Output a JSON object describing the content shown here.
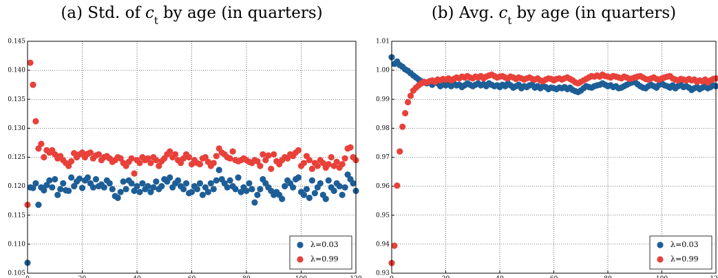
{
  "chart_data": [
    {
      "type": "scatter",
      "title": [
        "(a) Std. of",
        "c",
        "t",
        "by age (in quarters)"
      ],
      "x": [
        0,
        1,
        2,
        3,
        4,
        5,
        6,
        7,
        8,
        9,
        10,
        11,
        12,
        13,
        14,
        15,
        16,
        17,
        18,
        19,
        20,
        21,
        22,
        23,
        24,
        25,
        26,
        27,
        28,
        29,
        30,
        31,
        32,
        33,
        34,
        35,
        36,
        37,
        38,
        39,
        40,
        41,
        42,
        43,
        44,
        45,
        46,
        47,
        48,
        49,
        50,
        51,
        52,
        53,
        54,
        55,
        56,
        57,
        58,
        59,
        60,
        61,
        62,
        63,
        64,
        65,
        66,
        67,
        68,
        69,
        70,
        71,
        72,
        73,
        74,
        75,
        76,
        77,
        78,
        79,
        80,
        81,
        82,
        83,
        84,
        85,
        86,
        87,
        88,
        89,
        90,
        91,
        92,
        93,
        94,
        95,
        96,
        97,
        98,
        99,
        100,
        101,
        102,
        103,
        104,
        105,
        106,
        107,
        108,
        109,
        110,
        111,
        112,
        113,
        114,
        115,
        116,
        117,
        118,
        119,
        120
      ],
      "series": [
        {
          "name": "λ=0.03",
          "color": "#1d5e97",
          "values": [
            0.1068,
            0.1198,
            0.1197,
            0.1205,
            0.1168,
            0.1198,
            0.1193,
            0.1202,
            0.121,
            0.1198,
            0.1212,
            0.1185,
            0.1195,
            0.1205,
            0.1193,
            0.1192,
            0.1215,
            0.12,
            0.1208,
            0.1213,
            0.1197,
            0.121,
            0.1215,
            0.1205,
            0.1198,
            0.1212,
            0.12,
            0.1203,
            0.1198,
            0.121,
            0.1205,
            0.1195,
            0.1183,
            0.118,
            0.119,
            0.1208,
            0.1195,
            0.121,
            0.1205,
            0.1192,
            0.12,
            0.119,
            0.1205,
            0.1195,
            0.12,
            0.119,
            0.1198,
            0.1208,
            0.1195,
            0.12,
            0.1212,
            0.1208,
            0.1215,
            0.1198,
            0.1205,
            0.121,
            0.12,
            0.1195,
            0.1205,
            0.1188,
            0.119,
            0.12,
            0.1195,
            0.1205,
            0.1185,
            0.1198,
            0.119,
            0.1205,
            0.1195,
            0.121,
            0.1228,
            0.1212,
            0.1205,
            0.1198,
            0.121,
            0.12,
            0.1195,
            0.1215,
            0.119,
            0.1198,
            0.1192,
            0.1205,
            0.1195,
            0.1172,
            0.1185,
            0.1195,
            0.1212,
            0.1205,
            0.1198,
            0.1192,
            0.1185,
            0.119,
            0.1185,
            0.1178,
            0.12,
            0.121,
            0.1205,
            0.1198,
            0.1212,
            0.1215,
            0.119,
            0.1185,
            0.1195,
            0.118,
            0.121,
            0.1188,
            0.1198,
            0.1205,
            0.1185,
            0.1178,
            0.121,
            0.1198,
            0.1192,
            0.1205,
            0.12,
            0.1185,
            0.1198,
            0.122,
            0.1212,
            0.1205,
            0.1192
          ]
        },
        {
          "name": "λ=0.99",
          "color": "#e8413a",
          "values": [
            0.1168,
            0.1413,
            0.1375,
            0.1312,
            0.1265,
            0.1273,
            0.125,
            0.1262,
            0.1258,
            0.1262,
            0.1255,
            0.1248,
            0.1252,
            0.1245,
            0.124,
            0.1235,
            0.1243,
            0.1257,
            0.125,
            0.1255,
            0.1258,
            0.125,
            0.1256,
            0.1258,
            0.1248,
            0.1253,
            0.1255,
            0.1245,
            0.125,
            0.1252,
            0.1248,
            0.1242,
            0.1245,
            0.125,
            0.1248,
            0.124,
            0.1235,
            0.1242,
            0.1248,
            0.1222,
            0.1245,
            0.124,
            0.125,
            0.1245,
            0.1248,
            0.124,
            0.125,
            0.1245,
            0.1235,
            0.1243,
            0.1248,
            0.1255,
            0.126,
            0.125,
            0.1255,
            0.1245,
            0.124,
            0.1248,
            0.1255,
            0.125,
            0.1238,
            0.1245,
            0.124,
            0.1238,
            0.1248,
            0.125,
            0.1242,
            0.1235,
            0.124,
            0.1252,
            0.1265,
            0.1258,
            0.1255,
            0.125,
            0.1248,
            0.126,
            0.1245,
            0.1243,
            0.1245,
            0.1248,
            0.1245,
            0.1242,
            0.124,
            0.1245,
            0.1243,
            0.1235,
            0.1255,
            0.1245,
            0.1253,
            0.123,
            0.1255,
            0.1243,
            0.1238,
            0.1245,
            0.125,
            0.1248,
            0.1255,
            0.1252,
            0.1258,
            0.1262,
            0.1235,
            0.124,
            0.1252,
            0.1245,
            0.123,
            0.124,
            0.1235,
            0.1245,
            0.124,
            0.1232,
            0.1238,
            0.125,
            0.1235,
            0.1242,
            0.1232,
            0.1238,
            0.1248,
            0.1265,
            0.1267,
            0.125,
            0.1245
          ]
        }
      ],
      "xlim": [
        0,
        120
      ],
      "xticks": [
        0,
        20,
        40,
        60,
        80,
        100,
        120
      ],
      "ylim": [
        0.105,
        0.145
      ],
      "yticks": [
        0.105,
        {
          "value": 0.11,
          "label": "0.110"
        },
        0.115,
        {
          "value": 0.12,
          "label": "0.120"
        },
        0.125,
        {
          "value": 0.13,
          "label": "0.130"
        },
        0.135,
        {
          "value": 0.14,
          "label": "0.140"
        },
        0.145
      ],
      "grid": true,
      "legend": "lower right"
    },
    {
      "type": "scatter",
      "title": [
        "(b) Avg.",
        "c",
        "t",
        "by age (in quarters)"
      ],
      "x": [
        0,
        1,
        2,
        3,
        4,
        5,
        6,
        7,
        8,
        9,
        10,
        11,
        12,
        13,
        14,
        15,
        16,
        17,
        18,
        19,
        20,
        21,
        22,
        23,
        24,
        25,
        26,
        27,
        28,
        29,
        30,
        31,
        32,
        33,
        34,
        35,
        36,
        37,
        38,
        39,
        40,
        41,
        42,
        43,
        44,
        45,
        46,
        47,
        48,
        49,
        50,
        51,
        52,
        53,
        54,
        55,
        56,
        57,
        58,
        59,
        60,
        61,
        62,
        63,
        64,
        65,
        66,
        67,
        68,
        69,
        70,
        71,
        72,
        73,
        74,
        75,
        76,
        77,
        78,
        79,
        80,
        81,
        82,
        83,
        84,
        85,
        86,
        87,
        88,
        89,
        90,
        91,
        92,
        93,
        94,
        95,
        96,
        97,
        98,
        99,
        100,
        101,
        102,
        103,
        104,
        105,
        106,
        107,
        108,
        109,
        110,
        111,
        112,
        113,
        114,
        115,
        116,
        117,
        118,
        119,
        120
      ],
      "series": [
        {
          "name": "λ=0.03",
          "color": "#1d5e97",
          "values": [
            1.0045,
            1.0022,
            1.003,
            1.0018,
            1.0012,
            1.0003,
            0.9998,
            0.999,
            0.9982,
            0.9975,
            0.9968,
            0.9962,
            0.9958,
            0.9955,
            0.9962,
            0.995,
            0.9958,
            0.9955,
            0.9945,
            0.9952,
            0.9948,
            0.9952,
            0.9945,
            0.9955,
            0.9948,
            0.995,
            0.9942,
            0.9948,
            0.9955,
            0.995,
            0.9945,
            0.995,
            0.9955,
            0.9948,
            0.9952,
            0.9945,
            0.9955,
            0.995,
            0.9945,
            0.9948,
            0.9942,
            0.995,
            0.9945,
            0.9955,
            0.9948,
            0.994,
            0.9945,
            0.995,
            0.9938,
            0.9945,
            0.9942,
            0.9948,
            0.995,
            0.994,
            0.9945,
            0.9938,
            0.9945,
            0.9942,
            0.9935,
            0.994,
            0.9938,
            0.9935,
            0.994,
            0.9938,
            0.9942,
            0.9935,
            0.994,
            0.9932,
            0.9928,
            0.9925,
            0.993,
            0.9938,
            0.9945,
            0.9942,
            0.994,
            0.9945,
            0.9948,
            0.995,
            0.9955,
            0.995,
            0.9945,
            0.9948,
            0.9942,
            0.9945,
            0.9938,
            0.994,
            0.9945,
            0.995,
            0.9955,
            0.9958,
            0.996,
            0.9952,
            0.9945,
            0.994,
            0.9938,
            0.9945,
            0.995,
            0.9945,
            0.994,
            0.995,
            0.9955,
            0.9948,
            0.9945,
            0.994,
            0.9948,
            0.9938,
            0.9945,
            0.995,
            0.9942,
            0.9945,
            0.994,
            0.9932,
            0.9938,
            0.9942,
            0.9935,
            0.994,
            0.9945,
            0.9938,
            0.9942,
            0.9948,
            0.9945
          ]
        },
        {
          "name": "λ=0.99",
          "color": "#e8413a",
          "values": [
            0.9335,
            0.9395,
            0.9602,
            0.972,
            0.9805,
            0.9852,
            0.989,
            0.9912,
            0.993,
            0.994,
            0.9948,
            0.9955,
            0.996,
            0.9958,
            0.9962,
            0.9965,
            0.996,
            0.9968,
            0.9965,
            0.997,
            0.9968,
            0.9972,
            0.9965,
            0.997,
            0.9975,
            0.9972,
            0.9978,
            0.9975,
            0.998,
            0.9975,
            0.9972,
            0.9978,
            0.9975,
            0.998,
            0.9972,
            0.9978,
            0.9982,
            0.9985,
            0.998,
            0.9975,
            0.9978,
            0.998,
            0.9975,
            0.9972,
            0.9978,
            0.9975,
            0.997,
            0.9975,
            0.9972,
            0.9968,
            0.9972,
            0.9975,
            0.997,
            0.9968,
            0.9972,
            0.9965,
            0.9962,
            0.9968,
            0.9972,
            0.997,
            0.9965,
            0.997,
            0.9972,
            0.9968,
            0.9972,
            0.9975,
            0.997,
            0.9965,
            0.9958,
            0.9955,
            0.996,
            0.9965,
            0.997,
            0.9975,
            0.998,
            0.9978,
            0.9982,
            0.9978,
            0.9985,
            0.998,
            0.9978,
            0.9975,
            0.998,
            0.9978,
            0.9975,
            0.9972,
            0.9978,
            0.9975,
            0.997,
            0.9972,
            0.9975,
            0.9978,
            0.998,
            0.9975,
            0.997,
            0.9968,
            0.9972,
            0.9975,
            0.997,
            0.9968,
            0.9972,
            0.9975,
            0.9978,
            0.998,
            0.9972,
            0.9968,
            0.9965,
            0.997,
            0.9968,
            0.9965,
            0.997,
            0.9965,
            0.9968,
            0.996,
            0.9965,
            0.9962,
            0.9968,
            0.9958,
            0.9965,
            0.997,
            0.9972
          ]
        }
      ],
      "xlim": [
        0,
        120
      ],
      "xticks": [
        0,
        20,
        40,
        60,
        80,
        100,
        120
      ],
      "ylim": [
        0.93,
        1.01
      ],
      "yticks": [
        0.93,
        0.94,
        0.95,
        0.96,
        0.97,
        0.98,
        0.99,
        {
          "value": 1.0,
          "label": "1.00"
        },
        1.01
      ],
      "grid": true,
      "legend": "lower right"
    }
  ]
}
